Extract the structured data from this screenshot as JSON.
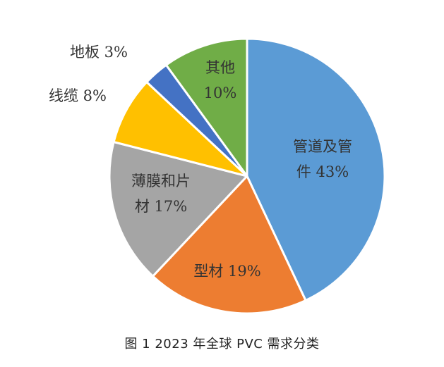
{
  "chart_data": {
    "type": "pie",
    "title": "",
    "slices": [
      {
        "label_lines": [
          "管道及管",
          "件 43%"
        ],
        "category": "管道及管件",
        "value": 43,
        "color": "#5b9bd5"
      },
      {
        "label_lines": [
          "型材 19%"
        ],
        "category": "型材",
        "value": 19,
        "color": "#ed7d31"
      },
      {
        "label_lines": [
          "薄膜和片",
          "材 17%"
        ],
        "category": "薄膜和片材",
        "value": 17,
        "color": "#a5a5a5"
      },
      {
        "label_lines": [
          "线缆 8%"
        ],
        "category": "线缆",
        "value": 8,
        "color": "#ffc000"
      },
      {
        "label_lines": [
          "地板 3%"
        ],
        "category": "地板",
        "value": 3,
        "color": "#4472c4"
      },
      {
        "label_lines": [
          "其他",
          "10%"
        ],
        "category": "其他",
        "value": 10,
        "color": "#70ad47"
      }
    ],
    "start_angle_deg": 0,
    "direction": "clockwise",
    "legend": "none"
  },
  "caption": "图 1  2023 年全球 PVC 需求分类"
}
